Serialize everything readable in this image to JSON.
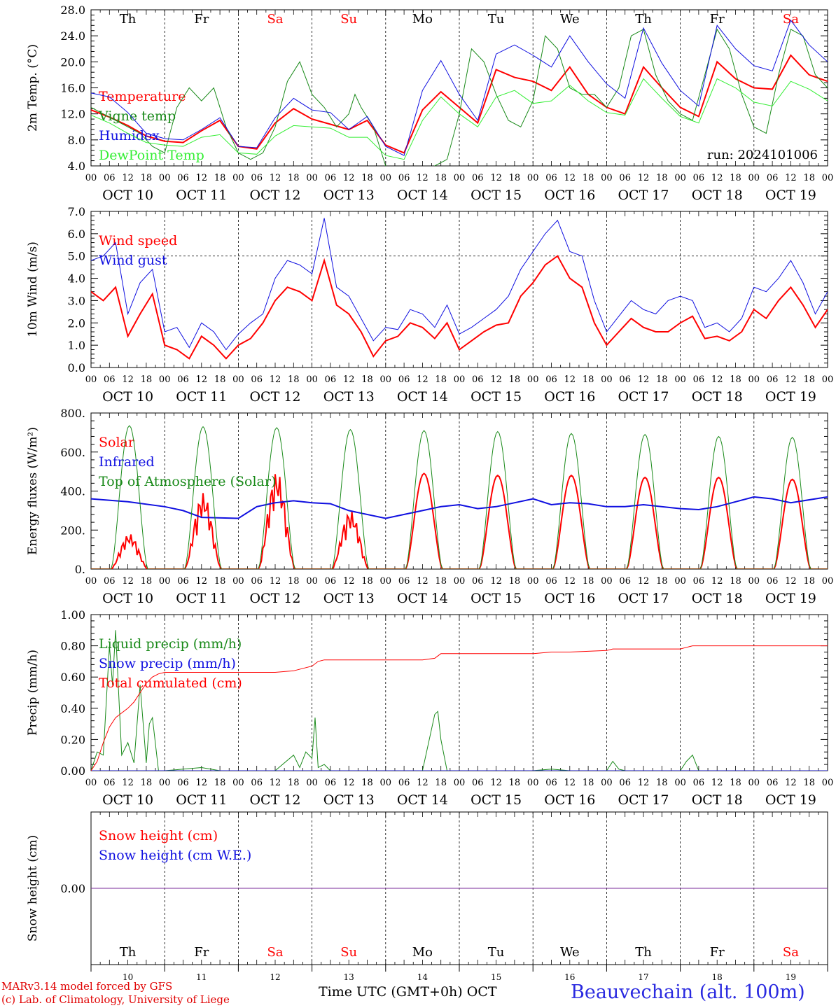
{
  "day_labels": [
    "Th",
    "Fr",
    "Sa",
    "Su",
    "Mo",
    "Tu",
    "We",
    "Th",
    "Fr",
    "Sa"
  ],
  "weekend_flags": [
    false,
    false,
    true,
    true,
    false,
    false,
    false,
    false,
    false,
    true
  ],
  "date_labels": [
    "OCT 10",
    "OCT 11",
    "OCT 12",
    "OCT 13",
    "OCT 14",
    "OCT 15",
    "OCT 16",
    "OCT 17",
    "OCT 18",
    "OCT 19"
  ],
  "hour_ticks": [
    "00",
    "06",
    "12",
    "18"
  ],
  "bottom_day_numbers": [
    "10",
    "11",
    "12",
    "13",
    "14",
    "15",
    "16",
    "17",
    "18",
    "19"
  ],
  "footer": {
    "model": "MARv3.14 model forced by GFS",
    "lab": "(c) Lab. of Climatology, University of Liege",
    "axis_title": "Time UTC (GMT+0h)",
    "month": "OCT",
    "station": "Beauvechain (alt. 100m)"
  },
  "colors": {
    "red": "#ff0000",
    "darkgreen": "#1a8a1a",
    "blue": "#1010e0",
    "lightgreen": "#33ee33",
    "purple": "#7a2a9a"
  },
  "chart_data": [
    {
      "type": "line",
      "ylabel": "2m Temp. (°C)",
      "ylim": [
        4,
        28
      ],
      "yticks": [
        "4.0",
        "8.0",
        "12.0",
        "16.0",
        "20.0",
        "24.0",
        "28.0"
      ],
      "run_label": "run: 2024101006",
      "x_unit": "hours since Oct 10 00 UTC",
      "series": [
        {
          "name": "Temperature",
          "color": "red",
          "width": 2,
          "x": [
            0,
            6,
            12,
            18,
            24,
            30,
            36,
            42,
            48,
            54,
            60,
            66,
            72,
            78,
            84,
            90,
            96,
            102,
            108,
            114,
            120,
            126,
            132,
            138,
            144,
            150,
            156,
            162,
            168,
            174,
            180,
            186,
            192,
            198,
            204,
            210,
            216,
            222,
            228,
            234,
            240
          ],
          "y": [
            12.6,
            11.5,
            10.2,
            8.6,
            7.8,
            7.6,
            9.4,
            11.0,
            7.0,
            6.6,
            10.6,
            12.8,
            11.2,
            10.4,
            9.6,
            11.0,
            7.2,
            6.0,
            12.6,
            15.4,
            13.0,
            10.6,
            18.8,
            17.6,
            17.0,
            15.6,
            19.2,
            15.0,
            13.0,
            12.0,
            19.2,
            16.0,
            13.0,
            11.6,
            20.0,
            17.4,
            16.0,
            15.8,
            21.0,
            18.0,
            17.0
          ]
        },
        {
          "name": "Vigne temp",
          "color": "darkgreen",
          "width": 1,
          "x": [
            0,
            4,
            8,
            12,
            16,
            20,
            24,
            28,
            32,
            36,
            40,
            44,
            48,
            52,
            56,
            60,
            64,
            68,
            72,
            76,
            80,
            84,
            86,
            88,
            92,
            96,
            100,
            104,
            108,
            112,
            116,
            120,
            124,
            128,
            132,
            136,
            140,
            144,
            148,
            152,
            156,
            160,
            164,
            168,
            172,
            176,
            180,
            184,
            188,
            192,
            196,
            200,
            204,
            208,
            212,
            216,
            220,
            224,
            228,
            232,
            236,
            240
          ],
          "y": [
            13,
            12,
            11,
            10,
            9,
            7,
            6,
            13,
            16,
            14,
            16,
            10,
            6,
            5,
            6,
            10,
            17,
            20,
            15,
            13,
            10,
            12,
            15,
            13,
            10,
            4,
            3,
            3,
            3,
            4,
            5,
            12,
            22,
            20,
            15,
            11,
            10,
            14,
            24,
            22,
            16,
            15,
            15,
            13,
            16,
            24,
            25,
            18,
            14,
            12,
            11,
            18,
            25,
            22,
            15,
            10,
            9,
            18,
            25,
            24,
            18,
            16
          ]
        },
        {
          "name": "Humidex",
          "color": "blue",
          "width": 1,
          "x": [
            0,
            6,
            12,
            18,
            24,
            30,
            36,
            42,
            48,
            54,
            60,
            66,
            72,
            78,
            84,
            90,
            96,
            102,
            108,
            114,
            120,
            126,
            132,
            138,
            144,
            150,
            156,
            162,
            168,
            174,
            180,
            186,
            192,
            198,
            204,
            210,
            216,
            222,
            228,
            234,
            240
          ],
          "y": [
            15.2,
            14.6,
            12.2,
            9.0,
            8.2,
            8.0,
            9.6,
            11.4,
            7.0,
            6.8,
            11.4,
            14.4,
            12.6,
            12.2,
            9.6,
            11.6,
            7.0,
            5.6,
            15.6,
            20.2,
            15.0,
            11.0,
            21.2,
            22.6,
            21.0,
            19.2,
            24.0,
            20.0,
            16.6,
            14.4,
            25.2,
            19.8,
            15.6,
            13.2,
            25.6,
            22.0,
            19.4,
            18.6,
            26.4,
            22.6,
            20.0
          ]
        },
        {
          "name": "DewPoint Temp",
          "color": "lightgreen",
          "width": 1,
          "x": [
            0,
            6,
            12,
            18,
            24,
            30,
            36,
            42,
            48,
            54,
            60,
            66,
            72,
            78,
            84,
            90,
            96,
            102,
            108,
            114,
            120,
            126,
            132,
            138,
            144,
            150,
            156,
            162,
            168,
            174,
            180,
            186,
            192,
            198,
            204,
            210,
            216,
            222,
            228,
            234,
            240
          ],
          "y": [
            11.8,
            10.6,
            9.0,
            7.6,
            7.2,
            7.0,
            8.4,
            8.8,
            6.0,
            5.8,
            8.6,
            10.2,
            10.0,
            9.8,
            8.4,
            8.4,
            5.6,
            5.0,
            11.0,
            14.6,
            12.0,
            10.0,
            14.6,
            15.6,
            13.6,
            14.0,
            16.4,
            14.0,
            12.2,
            11.8,
            17.4,
            14.4,
            11.6,
            10.6,
            17.4,
            16.0,
            13.8,
            13.2,
            17.0,
            15.8,
            14.0
          ]
        }
      ]
    },
    {
      "type": "line",
      "ylabel": "10m Wind (m/s)",
      "ylim": [
        0,
        7
      ],
      "yticks": [
        "0.0",
        "1.0",
        "2.0",
        "3.0",
        "4.0",
        "5.0",
        "6.0",
        "7.0"
      ],
      "hline": 5,
      "series": [
        {
          "name": "Wind speed",
          "color": "red",
          "width": 2,
          "x": [
            0,
            4,
            8,
            12,
            16,
            20,
            24,
            28,
            32,
            36,
            40,
            44,
            48,
            52,
            56,
            60,
            64,
            68,
            72,
            76,
            80,
            84,
            88,
            92,
            96,
            100,
            104,
            108,
            112,
            116,
            120,
            124,
            128,
            132,
            136,
            140,
            144,
            148,
            152,
            156,
            160,
            164,
            168,
            172,
            176,
            180,
            184,
            188,
            192,
            196,
            200,
            204,
            208,
            212,
            216,
            220,
            224,
            228,
            232,
            236,
            240
          ],
          "y": [
            3.4,
            3.0,
            3.6,
            1.4,
            2.4,
            3.3,
            1.0,
            0.8,
            0.4,
            1.4,
            1.0,
            0.4,
            1.0,
            1.3,
            2.0,
            3.0,
            3.6,
            3.4,
            3.0,
            4.8,
            2.8,
            2.4,
            1.6,
            0.5,
            1.2,
            1.4,
            2.0,
            1.8,
            1.3,
            2.0,
            0.8,
            1.2,
            1.6,
            1.9,
            2.0,
            3.2,
            3.8,
            4.6,
            5.0,
            4.0,
            3.6,
            2.0,
            1.0,
            1.6,
            2.2,
            1.8,
            1.6,
            1.6,
            2.0,
            2.3,
            1.3,
            1.4,
            1.2,
            1.6,
            2.6,
            2.2,
            3.0,
            3.6,
            2.8,
            1.8,
            2.6
          ]
        },
        {
          "name": "Wind gust",
          "color": "blue",
          "width": 1,
          "x": [
            0,
            4,
            8,
            12,
            16,
            20,
            24,
            28,
            32,
            36,
            40,
            44,
            48,
            52,
            56,
            60,
            64,
            68,
            72,
            76,
            80,
            84,
            88,
            92,
            96,
            100,
            104,
            108,
            112,
            116,
            120,
            124,
            128,
            132,
            136,
            140,
            144,
            148,
            152,
            156,
            160,
            164,
            168,
            172,
            176,
            180,
            184,
            188,
            192,
            196,
            200,
            204,
            208,
            212,
            216,
            220,
            224,
            228,
            232,
            236,
            240
          ],
          "y": [
            4.8,
            5.0,
            5.6,
            2.4,
            3.8,
            4.4,
            1.6,
            1.8,
            0.9,
            2.0,
            1.6,
            0.8,
            1.5,
            2.0,
            2.4,
            4.0,
            4.8,
            4.6,
            4.2,
            6.7,
            3.6,
            3.2,
            2.2,
            1.2,
            1.8,
            1.7,
            2.6,
            2.4,
            1.8,
            2.8,
            1.5,
            1.8,
            2.2,
            2.6,
            3.2,
            4.4,
            5.2,
            6.0,
            6.6,
            5.2,
            5.0,
            3.0,
            1.6,
            2.3,
            3.0,
            2.6,
            2.4,
            3.0,
            3.2,
            3.0,
            1.8,
            2.0,
            1.6,
            2.2,
            3.6,
            3.4,
            4.0,
            4.8,
            3.8,
            2.4,
            3.4
          ]
        }
      ]
    },
    {
      "type": "line",
      "ylabel": "Energy fluxes (W/m²)",
      "ylim": [
        0,
        800
      ],
      "yticks": [
        "0.",
        "200.",
        "400.",
        "600.",
        "800."
      ],
      "series": [
        {
          "name": "Solar",
          "color": "red",
          "width": 2,
          "peaks": [
            180,
            390,
            500,
            300,
            490,
            480,
            480,
            470,
            470,
            460
          ],
          "jagged": [
            true,
            true,
            true,
            true,
            false,
            false,
            false,
            false,
            false,
            false
          ]
        },
        {
          "name": "Infrared",
          "color": "blue",
          "width": 2,
          "x": [
            0,
            12,
            24,
            30,
            36,
            48,
            54,
            60,
            66,
            72,
            78,
            84,
            96,
            108,
            114,
            120,
            126,
            132,
            144,
            150,
            156,
            162,
            168,
            174,
            180,
            192,
            198,
            204,
            216,
            222,
            228,
            240
          ],
          "y": [
            360,
            345,
            320,
            300,
            265,
            260,
            320,
            340,
            350,
            340,
            335,
            300,
            260,
            300,
            320,
            330,
            310,
            320,
            360,
            330,
            340,
            335,
            320,
            320,
            330,
            310,
            305,
            320,
            370,
            360,
            340,
            370
          ]
        },
        {
          "name": "Top of Atmosphere (Solar)",
          "color": "darkgreen",
          "width": 1,
          "peaks": [
            735,
            730,
            725,
            715,
            710,
            705,
            695,
            690,
            680,
            675
          ]
        }
      ]
    },
    {
      "type": "line",
      "ylabel": "Precip (mm/h)",
      "ylim": [
        0,
        1
      ],
      "yticks": [
        "0.00",
        "0.20",
        "0.40",
        "0.60",
        "0.80",
        "1.00"
      ],
      "series": [
        {
          "name": "Liquid precip (mm/h)",
          "color": "darkgreen",
          "width": 1,
          "x": [
            0,
            2,
            4,
            6,
            7,
            8,
            10,
            12,
            14,
            16,
            18,
            19,
            20,
            22,
            24,
            30,
            36,
            42,
            48,
            60,
            66,
            68,
            70,
            72,
            73,
            74,
            76,
            78,
            84,
            96,
            108,
            112,
            113,
            114,
            116,
            120,
            144,
            150,
            156,
            168,
            170,
            172,
            174,
            192,
            194,
            196,
            198,
            240
          ],
          "y": [
            0,
            0.12,
            0.1,
            0.8,
            0.55,
            0.9,
            0.1,
            0.18,
            0.05,
            0.55,
            0.05,
            0.3,
            0.34,
            0.0,
            0,
            0.01,
            0.02,
            0.0,
            0,
            0,
            0.1,
            0.02,
            0.12,
            0.08,
            0.34,
            0.02,
            0.04,
            0,
            0,
            0,
            0,
            0.36,
            0.38,
            0.2,
            0,
            0,
            0,
            0.01,
            0,
            0,
            0.06,
            0.01,
            0,
            0,
            0.06,
            0.1,
            0,
            0
          ]
        },
        {
          "name": "Snow precip (mm/h)",
          "color": "blue",
          "width": 1,
          "x": [
            0,
            240
          ],
          "y": [
            0,
            0
          ]
        },
        {
          "name": "Total cumulated (cm)",
          "color": "red",
          "width": 1,
          "x": [
            0,
            2,
            4,
            6,
            8,
            10,
            12,
            14,
            16,
            18,
            20,
            22,
            24,
            48,
            60,
            66,
            70,
            72,
            74,
            76,
            96,
            108,
            112,
            114,
            144,
            150,
            156,
            168,
            170,
            172,
            192,
            194,
            196,
            240
          ],
          "y": [
            0,
            0.06,
            0.18,
            0.28,
            0.34,
            0.37,
            0.4,
            0.44,
            0.5,
            0.56,
            0.6,
            0.62,
            0.63,
            0.63,
            0.63,
            0.64,
            0.66,
            0.67,
            0.7,
            0.71,
            0.71,
            0.71,
            0.72,
            0.75,
            0.75,
            0.76,
            0.76,
            0.77,
            0.78,
            0.78,
            0.78,
            0.79,
            0.8,
            0.8
          ]
        }
      ]
    },
    {
      "type": "line",
      "ylabel": "Snow height (cm)",
      "ylim": [
        -1,
        1
      ],
      "yticks": [
        "0.00"
      ],
      "series": [
        {
          "name": "Snow height (cm)",
          "color": "red",
          "width": 1,
          "x": [
            0,
            240
          ],
          "y": [
            0,
            0
          ]
        },
        {
          "name": "Snow height (cm W.E.)",
          "color": "blue",
          "width": 1,
          "x": [
            0,
            240
          ],
          "y": [
            0,
            0
          ]
        }
      ]
    }
  ]
}
